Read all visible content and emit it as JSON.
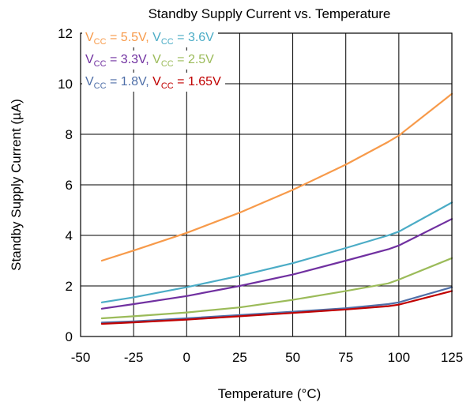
{
  "chart_data": {
    "type": "line",
    "title": "Standby Supply Current vs. Temperature",
    "xlabel": "Temperature (°C)",
    "ylabel": "Standby Supply Current (µA)",
    "xlim": [
      -50,
      125
    ],
    "ylim": [
      0,
      12
    ],
    "xticks": [
      -50,
      -25,
      0,
      25,
      50,
      75,
      100,
      125
    ],
    "yticks": [
      0,
      2,
      4,
      6,
      8,
      10,
      12
    ],
    "grid": true,
    "legend_placement": "top-left",
    "legend_rows": [
      [
        {
          "series": 0,
          "sep": ", "
        },
        {
          "series": 1,
          "sep": ""
        }
      ],
      [
        {
          "series": 2,
          "sep": ", "
        },
        {
          "series": 3,
          "sep": ""
        }
      ],
      [
        {
          "series": 4,
          "sep": ", "
        },
        {
          "series": 5,
          "sep": ""
        }
      ]
    ],
    "series": [
      {
        "name": "VCC = 5.5V",
        "label_base": "V",
        "label_sub": "CC",
        "label_rest": " = 5.5V",
        "color": "#F79A4A",
        "x": [
          -40,
          -25,
          0,
          25,
          50,
          75,
          95,
          100,
          125
        ],
        "y": [
          3.0,
          3.4,
          4.1,
          4.9,
          5.8,
          6.8,
          7.7,
          7.95,
          9.6
        ]
      },
      {
        "name": "VCC = 3.6V",
        "label_base": "V",
        "label_sub": "CC",
        "label_rest": " = 3.6V",
        "color": "#4BACC6",
        "x": [
          -40,
          -25,
          0,
          25,
          50,
          75,
          95,
          100,
          125
        ],
        "y": [
          1.35,
          1.55,
          1.95,
          2.4,
          2.9,
          3.5,
          4.0,
          4.15,
          5.3
        ]
      },
      {
        "name": "VCC = 3.3V",
        "label_base": "V",
        "label_sub": "CC",
        "label_rest": " = 3.3V",
        "color": "#7030A0",
        "x": [
          -40,
          -25,
          0,
          25,
          50,
          75,
          95,
          100,
          125
        ],
        "y": [
          1.1,
          1.28,
          1.6,
          2.0,
          2.45,
          3.0,
          3.45,
          3.6,
          4.65
        ]
      },
      {
        "name": "VCC = 2.5V",
        "label_base": "V",
        "label_sub": "CC",
        "label_rest": " = 2.5V",
        "color": "#9BBB59",
        "x": [
          -40,
          -25,
          0,
          25,
          50,
          75,
          95,
          100,
          125
        ],
        "y": [
          0.72,
          0.8,
          0.95,
          1.15,
          1.45,
          1.8,
          2.1,
          2.25,
          3.1
        ]
      },
      {
        "name": "VCC = 1.8V",
        "label_base": "V",
        "label_sub": "CC",
        "label_rest": " = 1.8V",
        "color": "#4F6FA8",
        "x": [
          -40,
          -25,
          0,
          25,
          50,
          75,
          95,
          100,
          125
        ],
        "y": [
          0.55,
          0.6,
          0.72,
          0.85,
          0.98,
          1.12,
          1.28,
          1.35,
          1.95
        ]
      },
      {
        "name": "VCC = 1.65V",
        "label_base": "V",
        "label_sub": "CC",
        "label_rest": " = 1.65V",
        "color": "#C00000",
        "x": [
          -40,
          -25,
          0,
          25,
          50,
          75,
          95,
          100,
          125
        ],
        "y": [
          0.5,
          0.56,
          0.67,
          0.8,
          0.93,
          1.07,
          1.2,
          1.26,
          1.8
        ]
      }
    ]
  }
}
